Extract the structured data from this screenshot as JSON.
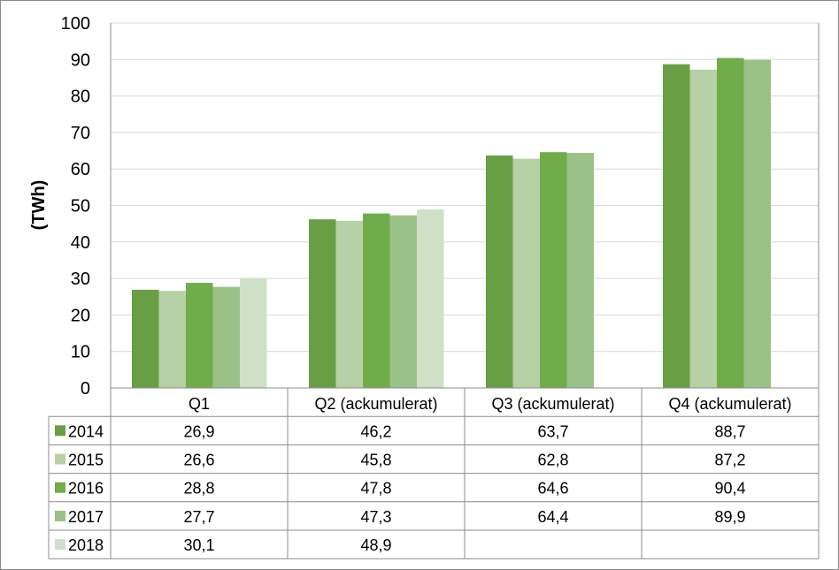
{
  "chart_data": {
    "type": "bar",
    "ylabel": "(TWh)",
    "ylim": [
      0,
      100
    ],
    "yticks": [
      0,
      10,
      20,
      30,
      40,
      50,
      60,
      70,
      80,
      90,
      100
    ],
    "grid": true,
    "legend": "data-table",
    "categories": [
      "Q1",
      "Q2 (ackumulerat)",
      "Q3 (ackumulerat)",
      "Q4 (ackumulerat)"
    ],
    "series": [
      {
        "name": "2014",
        "color": "#689F44",
        "values": [
          26.9,
          46.2,
          63.7,
          88.7
        ],
        "labels": [
          "26,9",
          "46,2",
          "63,7",
          "88,7"
        ]
      },
      {
        "name": "2015",
        "color": "#B6D1A5",
        "values": [
          26.6,
          45.8,
          62.8,
          87.2
        ],
        "labels": [
          "26,6",
          "45,8",
          "62,8",
          "87,2"
        ]
      },
      {
        "name": "2016",
        "color": "#71AC4B",
        "values": [
          28.8,
          47.8,
          64.6,
          90.4
        ],
        "labels": [
          "28,8",
          "47,8",
          "64,6",
          "90,4"
        ]
      },
      {
        "name": "2017",
        "color": "#9BC286",
        "values": [
          27.7,
          47.3,
          64.4,
          89.9
        ],
        "labels": [
          "27,7",
          "47,3",
          "64,4",
          "89,9"
        ]
      },
      {
        "name": "2018",
        "color": "#D0E0C8",
        "values": [
          30.1,
          48.9,
          null,
          null
        ],
        "labels": [
          "30,1",
          "48,9",
          "",
          ""
        ]
      }
    ]
  }
}
